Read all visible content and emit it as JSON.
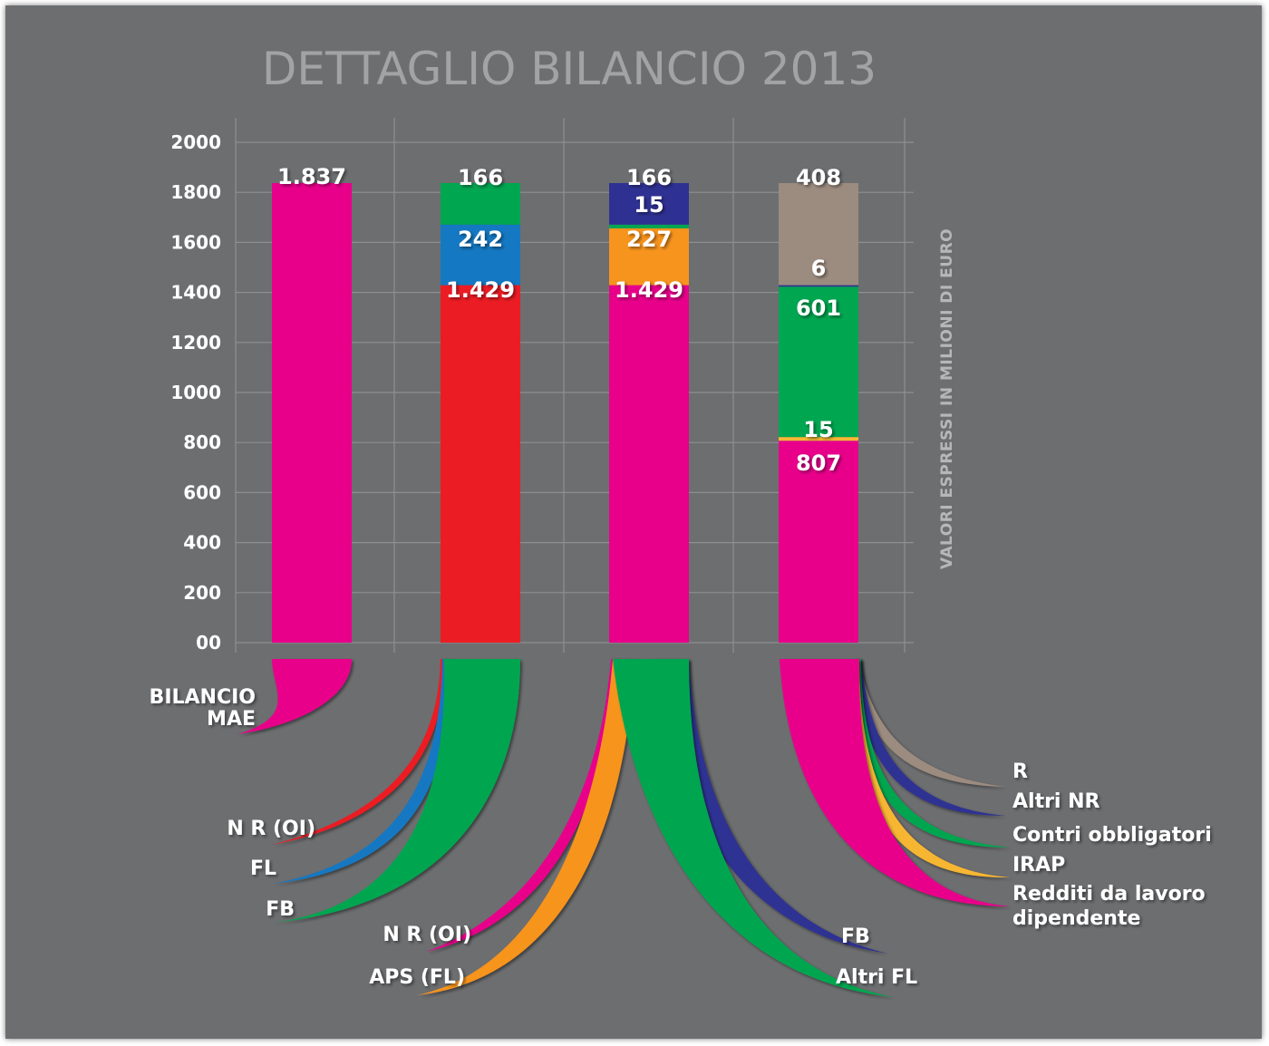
{
  "chart_data": {
    "type": "bar",
    "title": "DETTAGLIO BILANCIO 2013",
    "ylabel": "VALORI ESPRESSI IN MILIONI DI EURO",
    "ylim": [
      0,
      2000
    ],
    "yticks": [
      "00",
      "200",
      "400",
      "600",
      "800",
      "1000",
      "1200",
      "1400",
      "1600",
      "1800",
      "2000"
    ],
    "grid": true,
    "stacked": true,
    "columns": [
      {
        "legend_lines": [
          "BILANCIO",
          "MAE"
        ],
        "segments": [
          {
            "value": 1837,
            "label": "1.837",
            "color": "#e8008b"
          }
        ]
      },
      {
        "segments": [
          {
            "value": 1429,
            "label": "1.429",
            "color": "#ec1c24",
            "legend": "N R (OI)"
          },
          {
            "value": 242,
            "label": "242",
            "color": "#1478c2",
            "legend": "FL"
          },
          {
            "value": 166,
            "label": "166",
            "color": "#00a650",
            "legend": "FB"
          }
        ]
      },
      {
        "segments": [
          {
            "value": 1429,
            "label": "1.429",
            "color": "#e8008b",
            "legend": "N R (OI)"
          },
          {
            "value": 227,
            "label": "227",
            "color": "#f7941d",
            "legend": "APS (FL)"
          },
          {
            "value": 15,
            "label": "15",
            "color": "#00a650",
            "legend": "Altri FL"
          },
          {
            "value": 166,
            "label": "166",
            "color": "#2e3192",
            "legend": "FB"
          }
        ]
      },
      {
        "segments": [
          {
            "value": 807,
            "label": "807",
            "color": "#e8008b",
            "legend": "Redditi da lavoro dipendente"
          },
          {
            "value": 15,
            "label": "15",
            "color": "#f7b633",
            "legend": "IRAP"
          },
          {
            "value": 601,
            "label": "601",
            "color": "#00a650",
            "legend": "Contri obbligatori"
          },
          {
            "value": 6,
            "label": "6",
            "color": "#2e3192",
            "legend": "Altri NR"
          },
          {
            "value": 408,
            "label": "408",
            "color": "#9c8b7f",
            "legend": "R"
          }
        ]
      }
    ]
  }
}
